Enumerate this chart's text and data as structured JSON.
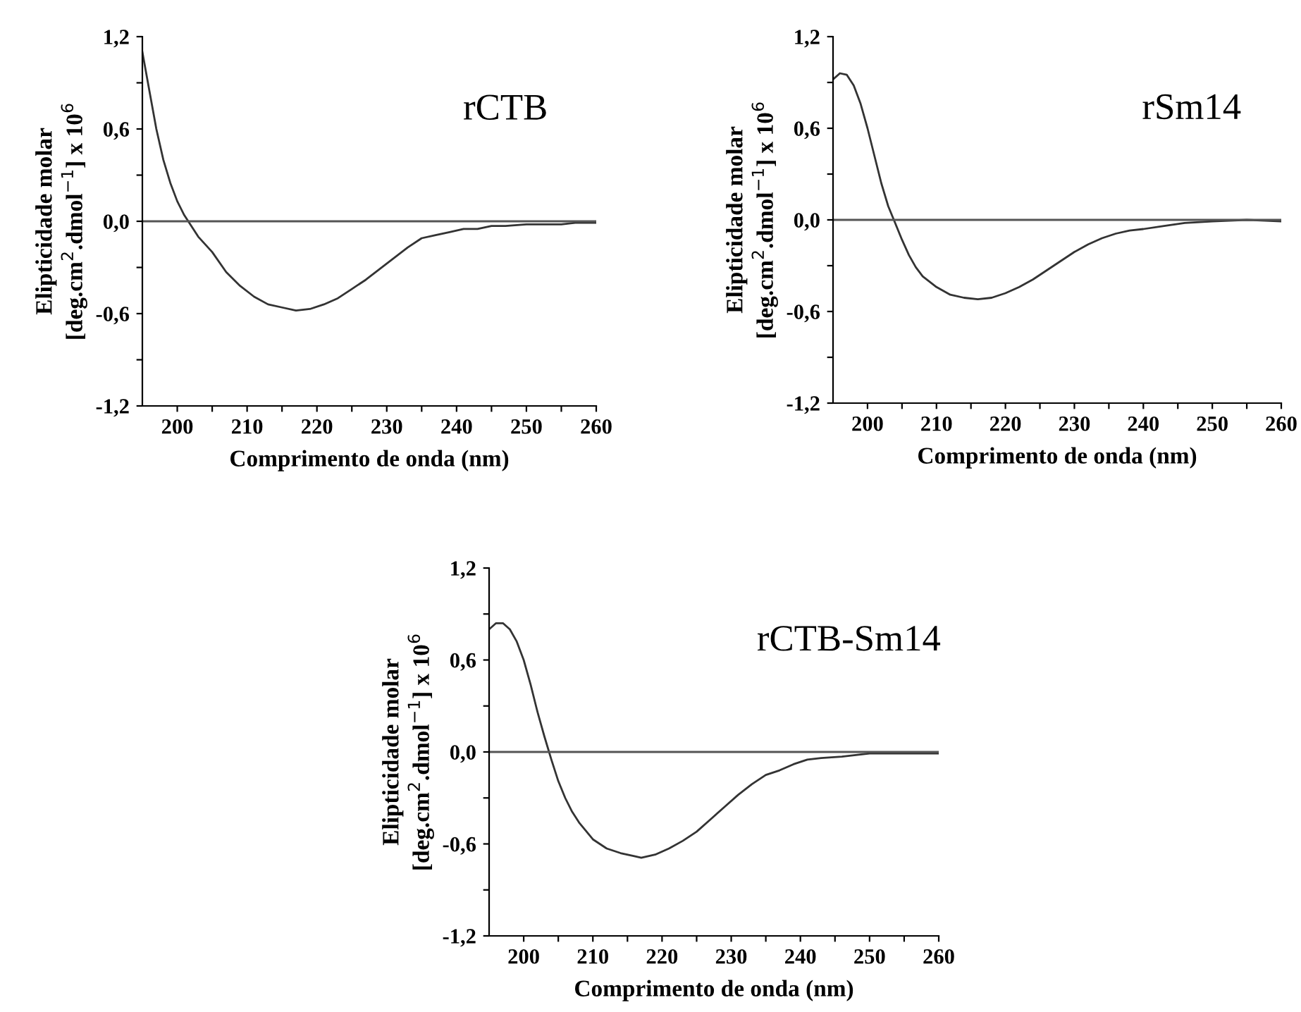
{
  "chart_data": [
    {
      "type": "line",
      "title": "rCTB",
      "xlabel": "Comprimento de onda (nm)",
      "ylabel": "Elipticidade molar\n[deg.cm$^{2}$.dmol$^{−1}$] x 10$^{6}$",
      "x": [
        195,
        196,
        197,
        198,
        199,
        200,
        201,
        202,
        203,
        205,
        207,
        209,
        211,
        213,
        215,
        217,
        219,
        221,
        223,
        225,
        227,
        229,
        231,
        233,
        235,
        237,
        239,
        241,
        243,
        245,
        247,
        250,
        253,
        255,
        257,
        260
      ],
      "series": [
        {
          "color": "#333333",
          "values": [
            1.1,
            0.85,
            0.6,
            0.4,
            0.25,
            0.13,
            0.04,
            -0.03,
            -0.1,
            -0.2,
            -0.33,
            -0.42,
            -0.49,
            -0.54,
            -0.56,
            -0.58,
            -0.57,
            -0.54,
            -0.5,
            -0.44,
            -0.38,
            -0.31,
            -0.24,
            -0.17,
            -0.11,
            -0.09,
            -0.07,
            -0.05,
            -0.05,
            -0.03,
            -0.03,
            -0.02,
            -0.02,
            -0.02,
            -0.01,
            -0.01
          ]
        }
      ],
      "xlim": [
        195,
        260
      ],
      "ylim": [
        -1.2,
        1.2
      ],
      "xticks": [
        200,
        {
          "value": 205,
          "label": null
        },
        210,
        {
          "value": 215,
          "label": null
        },
        220,
        {
          "value": 225,
          "label": null
        },
        230,
        {
          "value": 235,
          "label": null
        },
        240,
        {
          "value": 245,
          "label": null
        },
        250,
        {
          "value": 255,
          "label": null
        },
        260
      ],
      "yticks": [
        {
          "value": -1.2,
          "label": "-1,2"
        },
        {
          "value": -0.9,
          "label": null
        },
        {
          "value": -0.6,
          "label": "-0,6"
        },
        {
          "value": -0.3,
          "label": null
        },
        {
          "value": 0,
          "label": "0,0"
        },
        {
          "value": 0.3,
          "label": null
        },
        {
          "value": 0.6,
          "label": "0,6"
        },
        {
          "value": 0.9,
          "label": null
        },
        {
          "value": 1.2,
          "label": "1,2"
        }
      ],
      "ref_lines": [
        {
          "axis": "y",
          "value": 0,
          "color": "#555555"
        }
      ]
    },
    {
      "type": "line",
      "title": "rSm14",
      "xlabel": "Comprimento de onda (nm)",
      "ylabel": "Elipticidade molar\n[deg.cm$^{2}$.dmol$^{−1}$] x 10$^{6}$",
      "x": [
        195,
        196,
        197,
        198,
        199,
        200,
        201,
        202,
        203,
        204,
        205,
        206,
        207,
        208,
        210,
        212,
        214,
        216,
        218,
        220,
        222,
        224,
        226,
        228,
        230,
        232,
        234,
        236,
        238,
        240,
        243,
        246,
        250,
        255,
        260
      ],
      "series": [
        {
          "color": "#333333",
          "values": [
            0.92,
            0.96,
            0.95,
            0.88,
            0.76,
            0.6,
            0.42,
            0.24,
            0.09,
            -0.02,
            -0.13,
            -0.23,
            -0.31,
            -0.37,
            -0.44,
            -0.49,
            -0.51,
            -0.52,
            -0.51,
            -0.48,
            -0.44,
            -0.39,
            -0.33,
            -0.27,
            -0.21,
            -0.16,
            -0.12,
            -0.09,
            -0.07,
            -0.06,
            -0.04,
            -0.02,
            -0.01,
            0,
            -0.01
          ]
        }
      ],
      "xlim": [
        195,
        260
      ],
      "ylim": [
        -1.2,
        1.2
      ],
      "xticks": [
        200,
        {
          "value": 205,
          "label": null
        },
        210,
        {
          "value": 215,
          "label": null
        },
        220,
        {
          "value": 225,
          "label": null
        },
        230,
        {
          "value": 235,
          "label": null
        },
        240,
        {
          "value": 245,
          "label": null
        },
        250,
        {
          "value": 255,
          "label": null
        },
        260
      ],
      "yticks": [
        {
          "value": -1.2,
          "label": "-1,2"
        },
        {
          "value": -0.9,
          "label": null
        },
        {
          "value": -0.6,
          "label": "-0,6"
        },
        {
          "value": -0.3,
          "label": null
        },
        {
          "value": 0,
          "label": "0,0"
        },
        {
          "value": 0.3,
          "label": null
        },
        {
          "value": 0.6,
          "label": "0,6"
        },
        {
          "value": 0.9,
          "label": null
        },
        {
          "value": 1.2,
          "label": "1,2"
        }
      ],
      "ref_lines": [
        {
          "axis": "y",
          "value": 0,
          "color": "#555555"
        }
      ]
    },
    {
      "type": "line",
      "title": "rCTB-Sm14",
      "xlabel": "Comprimento de onda (nm)",
      "ylabel": "Elipticidade molar\n[deg.cm$^{2}$.dmol$^{−1}$] x 10$^{6}$",
      "x": [
        195,
        196,
        197,
        198,
        199,
        200,
        201,
        202,
        203,
        204,
        205,
        206,
        207,
        208,
        210,
        212,
        214,
        216,
        217,
        219,
        221,
        223,
        225,
        227,
        229,
        231,
        233,
        235,
        237,
        239,
        241,
        243,
        246,
        250,
        255,
        260
      ],
      "series": [
        {
          "color": "#333333",
          "values": [
            0.8,
            0.84,
            0.84,
            0.8,
            0.72,
            0.6,
            0.44,
            0.26,
            0.1,
            -0.05,
            -0.19,
            -0.3,
            -0.39,
            -0.46,
            -0.57,
            -0.63,
            -0.66,
            -0.68,
            -0.69,
            -0.67,
            -0.63,
            -0.58,
            -0.52,
            -0.44,
            -0.36,
            -0.28,
            -0.21,
            -0.15,
            -0.12,
            -0.08,
            -0.05,
            -0.04,
            -0.03,
            -0.01,
            -0.01,
            -0.01
          ]
        }
      ],
      "xlim": [
        195,
        260
      ],
      "ylim": [
        -1.2,
        1.2
      ],
      "xticks": [
        200,
        {
          "value": 205,
          "label": null
        },
        210,
        {
          "value": 215,
          "label": null
        },
        220,
        {
          "value": 225,
          "label": null
        },
        230,
        {
          "value": 235,
          "label": null
        },
        240,
        {
          "value": 245,
          "label": null
        },
        250,
        {
          "value": 255,
          "label": null
        },
        260
      ],
      "yticks": [
        {
          "value": -1.2,
          "label": "-1,2"
        },
        {
          "value": -0.9,
          "label": null
        },
        {
          "value": -0.6,
          "label": "-0,6"
        },
        {
          "value": -0.3,
          "label": null
        },
        {
          "value": 0,
          "label": "0,0"
        },
        {
          "value": 0.3,
          "label": null
        },
        {
          "value": 0.6,
          "label": "0,6"
        },
        {
          "value": 0.9,
          "label": null
        },
        {
          "value": 1.2,
          "label": "1,2"
        }
      ],
      "ref_lines": [
        {
          "axis": "y",
          "value": 0,
          "color": "#555555"
        }
      ]
    }
  ]
}
